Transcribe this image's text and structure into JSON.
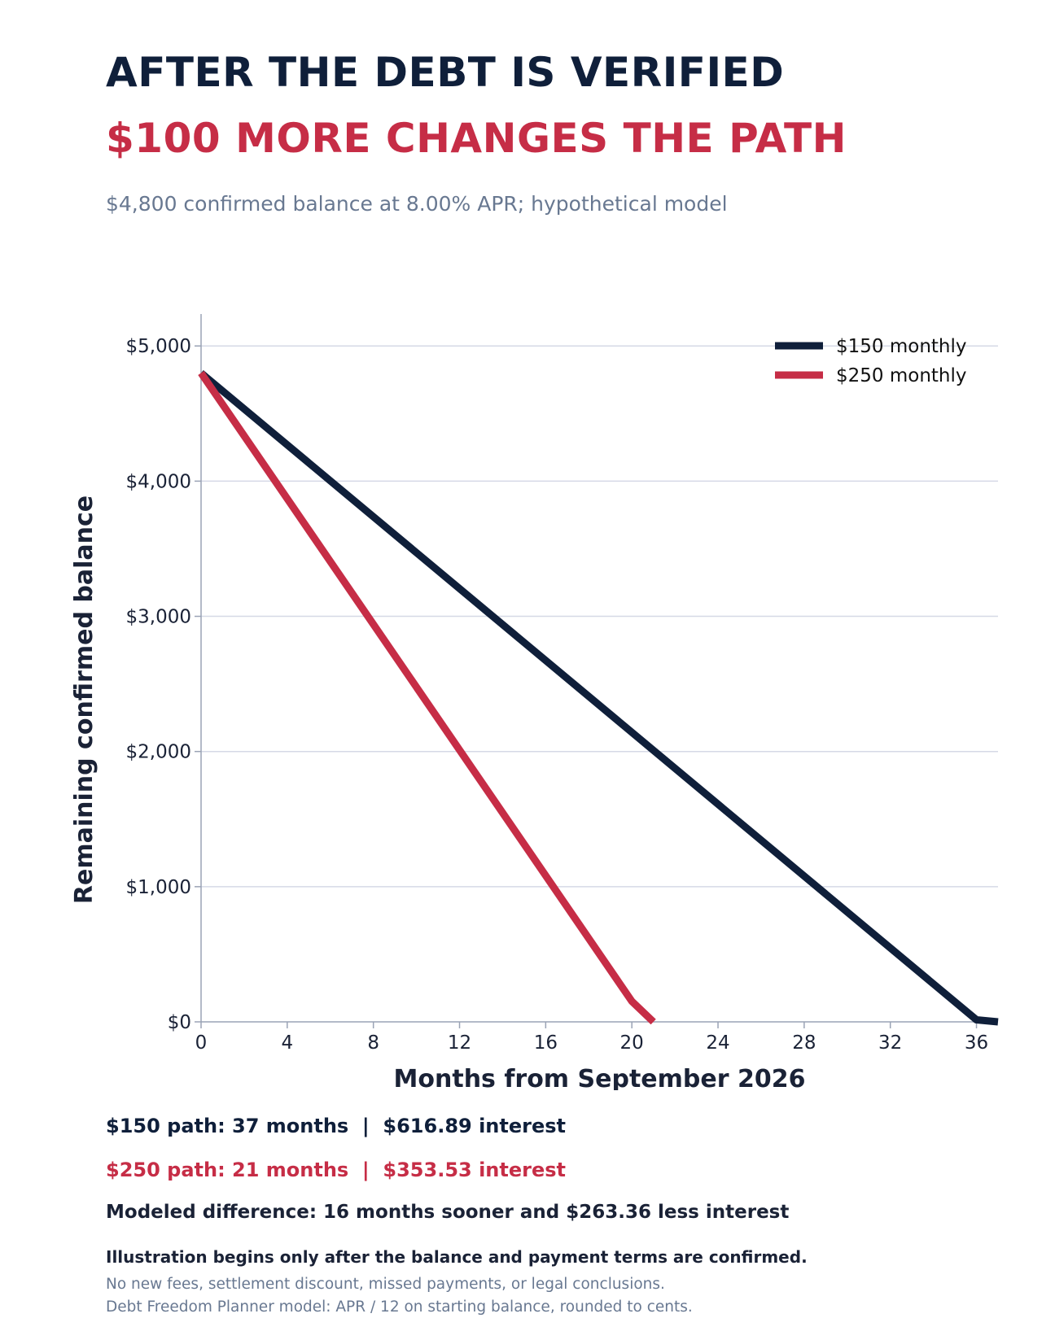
{
  "header": {
    "title_line1": "AFTER THE DEBT IS VERIFIED",
    "title_line2": "$100 MORE CHANGES THE PATH",
    "subtitle": "$4,800 confirmed balance at 8.00% APR; hypothetical model"
  },
  "colors": {
    "navy": "#0f1f3a",
    "red": "#c62d46",
    "grid": "#d5d9e6",
    "axis": "#9aa3b5",
    "muted": "#687891"
  },
  "chart_data": {
    "type": "line",
    "xlabel": "Months from September 2026",
    "ylabel": "Remaining confirmed balance",
    "xlim": [
      0,
      37
    ],
    "ylim": [
      0,
      5200
    ],
    "x_ticks": [
      0,
      4,
      8,
      12,
      16,
      20,
      24,
      28,
      32,
      36
    ],
    "y_ticks": [
      0,
      1000,
      2000,
      3000,
      4000,
      5000
    ],
    "y_tick_labels": [
      "$0",
      "$1,000",
      "$2,000",
      "$3,000",
      "$4,000",
      "$5,000"
    ],
    "grid": "horizontal",
    "legend_position": "top-right",
    "series": [
      {
        "name": "$150 monthly",
        "color": "#0f1f3a",
        "x": [
          0,
          36,
          37
        ],
        "y": [
          4800,
          15,
          0
        ]
      },
      {
        "name": "$250 monthly",
        "color": "#c62d46",
        "x": [
          0,
          20,
          21
        ],
        "y": [
          4800,
          152,
          0
        ]
      }
    ]
  },
  "summary": {
    "path150": "$150 path: 37 months  |  $616.89 interest",
    "path250": "$250 path: 21 months  |  $353.53 interest",
    "difference": "Modeled difference: 16 months sooner and $263.36 less interest"
  },
  "notes": {
    "line1": "Illustration begins only after the balance and payment terms are confirmed.",
    "line2": "No new fees, settlement discount, missed payments, or legal conclusions.",
    "line3": "Debt Freedom Planner model: APR / 12 on starting balance, rounded to cents."
  }
}
